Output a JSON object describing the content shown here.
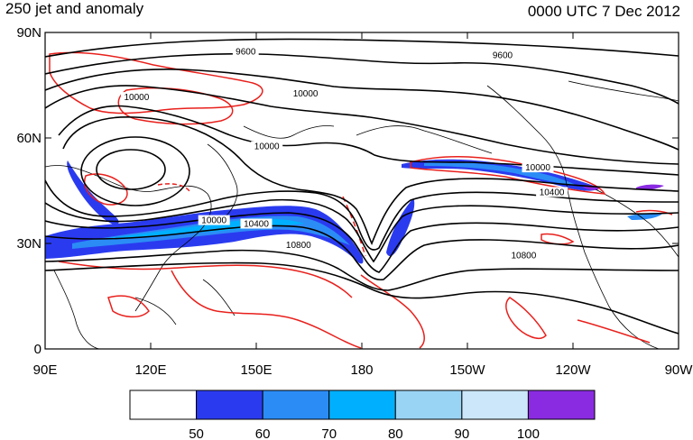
{
  "title": "250 jet and anomaly",
  "timestamp": "0000 UTC 7 Dec 2012",
  "chart_data": {
    "type": "contour_map",
    "projection": "cylindrical-equidistant",
    "lon_range": [
      90,
      270
    ],
    "lat_range": [
      0,
      90
    ],
    "y_ticks": [
      {
        "lat": 90,
        "label": "90N"
      },
      {
        "lat": 60,
        "label": "60N"
      },
      {
        "lat": 30,
        "label": "30N"
      },
      {
        "lat": 0,
        "label": "0"
      }
    ],
    "x_ticks": [
      {
        "lon": 90,
        "label": "90E"
      },
      {
        "lon": 120,
        "label": "120E"
      },
      {
        "lon": 150,
        "label": "150E"
      },
      {
        "lon": 180,
        "label": "180"
      },
      {
        "lon": 210,
        "label": "150W"
      },
      {
        "lon": 240,
        "label": "120W"
      },
      {
        "lon": 270,
        "label": "90W"
      }
    ],
    "height_contour_labels": [
      {
        "text": "9600",
        "lon": 147,
        "lat": 84
      },
      {
        "text": "9600",
        "lon": 220,
        "lat": 83
      },
      {
        "text": "10000",
        "lon": 116,
        "lat": 71
      },
      {
        "text": "10000",
        "lon": 164,
        "lat": 72
      },
      {
        "text": "10000",
        "lon": 153,
        "lat": 57
      },
      {
        "text": "10000",
        "lon": 138,
        "lat": 36
      },
      {
        "text": "10400",
        "lon": 150,
        "lat": 35
      },
      {
        "text": "10800",
        "lon": 162,
        "lat": 29
      },
      {
        "text": "10000",
        "lon": 230,
        "lat": 51
      },
      {
        "text": "10400",
        "lon": 234,
        "lat": 44
      },
      {
        "text": "10800",
        "lon": 226,
        "lat": 26
      }
    ],
    "colorbar": {
      "colors": [
        "#ffffff",
        "#2a3bef",
        "#2b8cf6",
        "#00b0ff",
        "#9ad4f5",
        "#cbe7f9",
        "#8a2be2"
      ],
      "labels": [
        "50",
        "60",
        "70",
        "80",
        "90",
        "100"
      ]
    }
  }
}
